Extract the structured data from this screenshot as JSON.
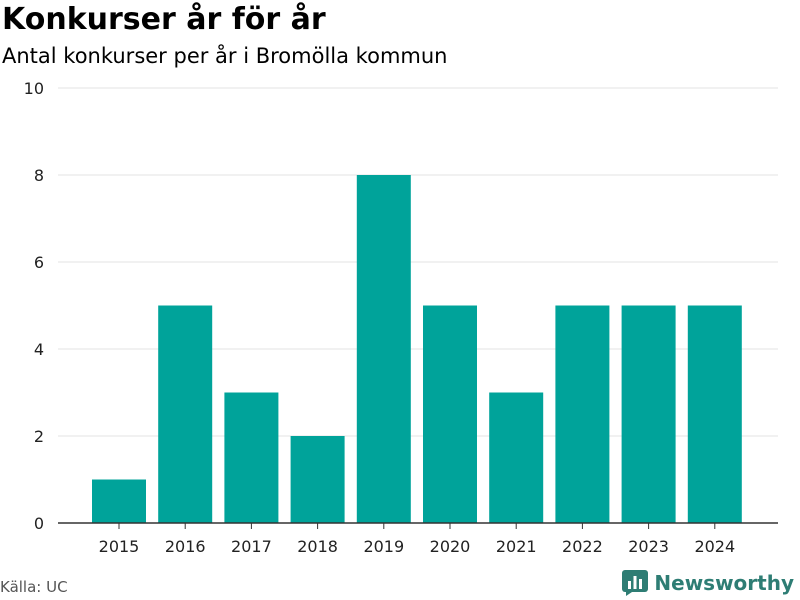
{
  "header": {
    "title": "Konkurser år för år",
    "subtitle": "Antal konkurser per år i Bromölla kommun"
  },
  "footer": {
    "source": "Källa: UC",
    "brand": "Newsworthy",
    "brand_icon": "bar-chart-logo-icon",
    "brand_color": "#2e7d74"
  },
  "chart_data": {
    "type": "bar",
    "title": "Konkurser år för år",
    "subtitle": "Antal konkurser per år i Bromölla kommun",
    "xlabel": "",
    "ylabel": "",
    "categories": [
      "2015",
      "2016",
      "2017",
      "2018",
      "2019",
      "2020",
      "2021",
      "2022",
      "2023",
      "2024"
    ],
    "values": [
      1,
      5,
      3,
      2,
      8,
      5,
      3,
      5,
      5,
      5
    ],
    "ylim": [
      0,
      10
    ],
    "yticks": [
      0,
      2,
      4,
      6,
      8,
      10
    ],
    "grid": true,
    "bar_color": "#00a39a"
  }
}
